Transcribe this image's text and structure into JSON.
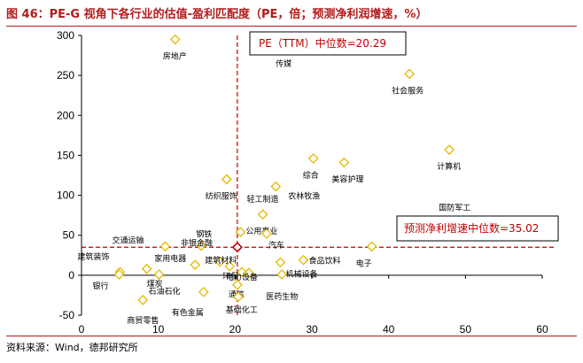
{
  "figure": {
    "title": "图 46：PE-G 视角下各行业的估值-盈利匹配度（PE，倍；预测净利润增速，%）",
    "source": "资料来源：Wind，德邦研究所"
  },
  "colors": {
    "point": "#e6b800",
    "highlight": "#c00000",
    "median_line": "#c00000",
    "title": "#b31b1b"
  },
  "chart_data": {
    "type": "scatter",
    "title": "",
    "xlabel": "",
    "ylabel": "",
    "xlim": [
      0,
      60
    ],
    "ylim": [
      -50,
      300
    ],
    "xticks": [
      0,
      10,
      20,
      30,
      40,
      50,
      60
    ],
    "yticks": [
      -50,
      0,
      50,
      100,
      150,
      200,
      250,
      300
    ],
    "grid": false,
    "points": [
      {
        "label": "房地产",
        "x": 12.2,
        "y": 295
      },
      {
        "label": "传媒",
        "x": 26.2,
        "y": 281
      },
      {
        "label": "社会服务",
        "x": 42.7,
        "y": 252
      },
      {
        "label": "计算机",
        "x": 47.9,
        "y": 157
      },
      {
        "label": "综合",
        "x": 30.2,
        "y": 146
      },
      {
        "label": "美容护理",
        "x": 34.2,
        "y": 141
      },
      {
        "label": "纺织服饰",
        "x": 18.9,
        "y": 120
      },
      {
        "label": "农林牧渔",
        "x": 25.3,
        "y": 111
      },
      {
        "label": "轻工制造",
        "x": 23.6,
        "y": 76
      },
      {
        "label": "国防军工",
        "x": 49.3,
        "y": 68
      },
      {
        "label": "公用事业",
        "x": 20.7,
        "y": 54
      },
      {
        "label": "汽车",
        "x": 24.1,
        "y": 52
      },
      {
        "label": "钢铁",
        "x": 15.6,
        "y": 37
      },
      {
        "label": "交通运输",
        "x": 10.9,
        "y": 36
      },
      {
        "label": "电子",
        "x": 37.8,
        "y": 36
      },
      {
        "label": "煤炭",
        "x": 8.5,
        "y": 8
      },
      {
        "label": "建筑装饰",
        "x": 5.0,
        "y": 4
      },
      {
        "label": "家用电器",
        "x": 14.8,
        "y": 13
      },
      {
        "label": "非银金融",
        "x": 18.0,
        "y": 17
      },
      {
        "label": "建筑材料",
        "x": 19.3,
        "y": 11
      },
      {
        "label": "环保",
        "x": 20.9,
        "y": 4
      },
      {
        "label": "电力设备",
        "x": 21.8,
        "y": 3
      },
      {
        "label": "食品饮料",
        "x": 28.9,
        "y": 19
      },
      {
        "label": "机械设备",
        "x": 25.9,
        "y": 16
      },
      {
        "label": "医药生物",
        "x": 26.1,
        "y": 1
      },
      {
        "label": "银行",
        "x": 4.9,
        "y": 1
      },
      {
        "label": "石油石化",
        "x": 10.1,
        "y": 1
      },
      {
        "label": "有色金属",
        "x": 15.9,
        "y": -21
      },
      {
        "label": "通信",
        "x": 20.3,
        "y": -12
      },
      {
        "label": "基础化工",
        "x": 20.4,
        "y": -27
      },
      {
        "label": "商贸零售",
        "x": 8.0,
        "y": -31
      }
    ],
    "highlight_point": {
      "x": 20.29,
      "y": 35.02
    },
    "reference_lines": [
      {
        "axis": "x",
        "value": 20.29,
        "label": "PE（TTM）中位数=20.29"
      },
      {
        "axis": "y",
        "value": 35.02,
        "label": "预测净利增速中位数=35.02"
      }
    ]
  }
}
